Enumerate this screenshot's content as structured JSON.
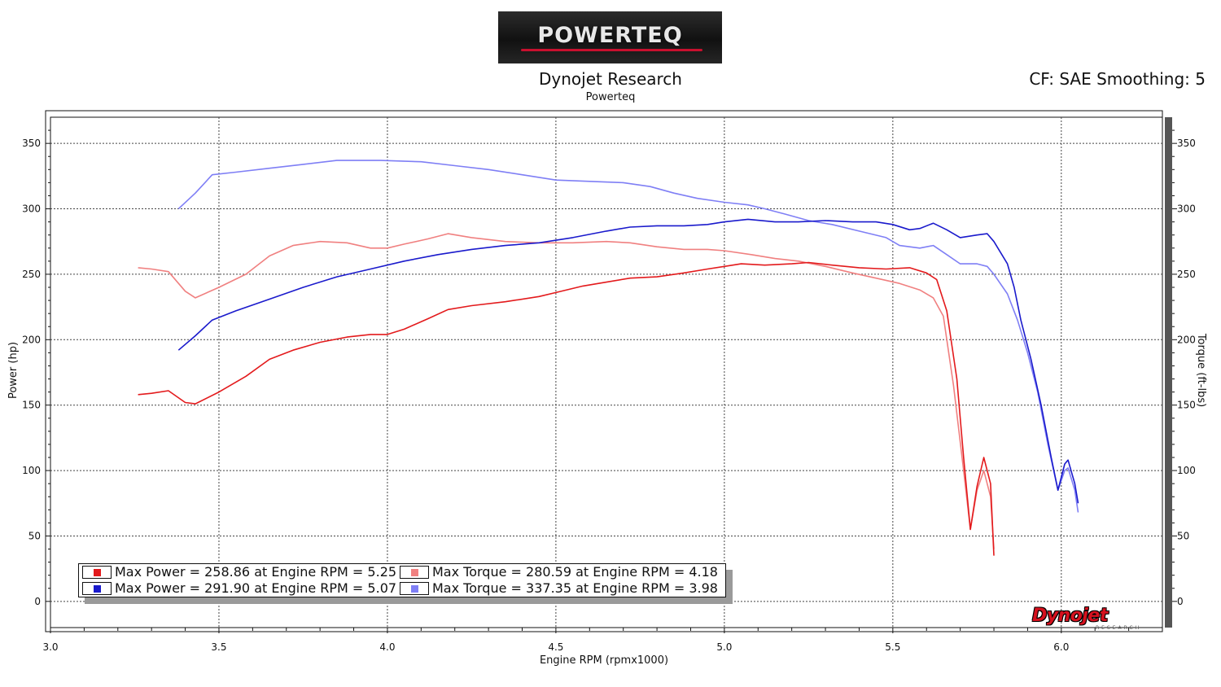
{
  "header": {
    "logo_text": "POWERTEQ",
    "title": "Dynojet Research",
    "subtitle": "Powerteq",
    "correction": "CF: SAE Smoothing: 5"
  },
  "footer_logo": {
    "text": "Dynojet",
    "subtext": "RESEARCH"
  },
  "chart_data": {
    "type": "line",
    "title": "Dynojet Research",
    "subtitle": "Powerteq",
    "xlabel": "Engine RPM (rpmx1000)",
    "ylabel": "Power (hp)",
    "y2label": "Torque (ft-lbs)",
    "xlim": [
      3.0,
      6.3
    ],
    "ylim": [
      -20,
      370
    ],
    "y2lim": [
      -20,
      370
    ],
    "x_ticks": [
      "3.0",
      "3.5",
      "4.0",
      "4.5",
      "5.0",
      "5.5",
      "6.0"
    ],
    "y_ticks": [
      "0",
      "50",
      "100",
      "150",
      "200",
      "250",
      "300",
      "350"
    ],
    "grid": true,
    "legend_position": "bottom-left",
    "series": [
      {
        "name": "Max Power = 258.86 at Engine RPM = 5.25",
        "axis": "left",
        "color": "#e31a1c",
        "points": [
          [
            3.26,
            158
          ],
          [
            3.3,
            159
          ],
          [
            3.35,
            161
          ],
          [
            3.4,
            152
          ],
          [
            3.43,
            151
          ],
          [
            3.5,
            160
          ],
          [
            3.58,
            172
          ],
          [
            3.65,
            185
          ],
          [
            3.72,
            192
          ],
          [
            3.8,
            198
          ],
          [
            3.88,
            202
          ],
          [
            3.95,
            204
          ],
          [
            4.0,
            204
          ],
          [
            4.05,
            208
          ],
          [
            4.12,
            216
          ],
          [
            4.18,
            223
          ],
          [
            4.25,
            226
          ],
          [
            4.35,
            229
          ],
          [
            4.45,
            233
          ],
          [
            4.5,
            236
          ],
          [
            4.58,
            241
          ],
          [
            4.65,
            244
          ],
          [
            4.72,
            247
          ],
          [
            4.8,
            248
          ],
          [
            4.88,
            251
          ],
          [
            4.95,
            254
          ],
          [
            5.0,
            256
          ],
          [
            5.05,
            258
          ],
          [
            5.12,
            257
          ],
          [
            5.2,
            258
          ],
          [
            5.25,
            259
          ],
          [
            5.32,
            257
          ],
          [
            5.4,
            255
          ],
          [
            5.48,
            254
          ],
          [
            5.55,
            255
          ],
          [
            5.6,
            251
          ],
          [
            5.63,
            246
          ],
          [
            5.66,
            222
          ],
          [
            5.69,
            170
          ],
          [
            5.71,
            110
          ],
          [
            5.73,
            55
          ],
          [
            5.75,
            88
          ],
          [
            5.77,
            110
          ],
          [
            5.79,
            90
          ],
          [
            5.8,
            35
          ]
        ]
      },
      {
        "name": "Max Power = 291.90 at Engine RPM = 5.07",
        "axis": "left",
        "color": "#1a1acc",
        "points": [
          [
            3.38,
            192
          ],
          [
            3.43,
            203
          ],
          [
            3.48,
            215
          ],
          [
            3.55,
            222
          ],
          [
            3.65,
            231
          ],
          [
            3.75,
            240
          ],
          [
            3.85,
            248
          ],
          [
            3.95,
            254
          ],
          [
            4.05,
            260
          ],
          [
            4.15,
            265
          ],
          [
            4.25,
            269
          ],
          [
            4.35,
            272
          ],
          [
            4.45,
            274
          ],
          [
            4.55,
            278
          ],
          [
            4.65,
            283
          ],
          [
            4.72,
            286
          ],
          [
            4.8,
            287
          ],
          [
            4.88,
            287
          ],
          [
            4.95,
            288
          ],
          [
            5.0,
            290
          ],
          [
            5.07,
            292
          ],
          [
            5.15,
            290
          ],
          [
            5.22,
            290
          ],
          [
            5.3,
            291
          ],
          [
            5.38,
            290
          ],
          [
            5.45,
            290
          ],
          [
            5.5,
            288
          ],
          [
            5.55,
            284
          ],
          [
            5.58,
            285
          ],
          [
            5.62,
            289
          ],
          [
            5.66,
            284
          ],
          [
            5.7,
            278
          ],
          [
            5.75,
            280
          ],
          [
            5.78,
            281
          ],
          [
            5.8,
            275
          ],
          [
            5.84,
            258
          ],
          [
            5.86,
            240
          ],
          [
            5.88,
            215
          ],
          [
            5.91,
            185
          ],
          [
            5.94,
            150
          ],
          [
            5.97,
            110
          ],
          [
            5.99,
            85
          ],
          [
            6.01,
            105
          ],
          [
            6.02,
            108
          ],
          [
            6.04,
            90
          ],
          [
            6.05,
            75
          ]
        ]
      },
      {
        "name": "Max Torque = 280.59 at Engine RPM = 4.18",
        "axis": "right",
        "color": "#f08080",
        "points": [
          [
            3.26,
            255
          ],
          [
            3.3,
            254
          ],
          [
            3.35,
            252
          ],
          [
            3.4,
            237
          ],
          [
            3.43,
            232
          ],
          [
            3.5,
            240
          ],
          [
            3.58,
            250
          ],
          [
            3.65,
            264
          ],
          [
            3.72,
            272
          ],
          [
            3.8,
            275
          ],
          [
            3.88,
            274
          ],
          [
            3.95,
            270
          ],
          [
            4.0,
            270
          ],
          [
            4.05,
            273
          ],
          [
            4.12,
            277
          ],
          [
            4.18,
            281
          ],
          [
            4.25,
            278
          ],
          [
            4.35,
            275
          ],
          [
            4.45,
            274
          ],
          [
            4.55,
            274
          ],
          [
            4.65,
            275
          ],
          [
            4.72,
            274
          ],
          [
            4.8,
            271
          ],
          [
            4.88,
            269
          ],
          [
            4.95,
            269
          ],
          [
            5.0,
            268
          ],
          [
            5.08,
            265
          ],
          [
            5.15,
            262
          ],
          [
            5.22,
            260
          ],
          [
            5.3,
            256
          ],
          [
            5.38,
            251
          ],
          [
            5.45,
            247
          ],
          [
            5.52,
            243
          ],
          [
            5.58,
            238
          ],
          [
            5.62,
            232
          ],
          [
            5.65,
            218
          ],
          [
            5.68,
            165
          ],
          [
            5.71,
            100
          ],
          [
            5.73,
            55
          ],
          [
            5.75,
            85
          ],
          [
            5.77,
            100
          ],
          [
            5.79,
            80
          ],
          [
            5.8,
            40
          ]
        ]
      },
      {
        "name": "Max Torque = 337.35 at Engine RPM = 3.98",
        "axis": "right",
        "color": "#7f7ff5",
        "points": [
          [
            3.38,
            300
          ],
          [
            3.43,
            312
          ],
          [
            3.48,
            326
          ],
          [
            3.55,
            328
          ],
          [
            3.65,
            331
          ],
          [
            3.75,
            334
          ],
          [
            3.85,
            337
          ],
          [
            3.98,
            337
          ],
          [
            4.1,
            336
          ],
          [
            4.2,
            333
          ],
          [
            4.3,
            330
          ],
          [
            4.4,
            326
          ],
          [
            4.5,
            322
          ],
          [
            4.6,
            321
          ],
          [
            4.7,
            320
          ],
          [
            4.78,
            317
          ],
          [
            4.85,
            312
          ],
          [
            4.92,
            308
          ],
          [
            5.0,
            305
          ],
          [
            5.07,
            303
          ],
          [
            5.12,
            300
          ],
          [
            5.18,
            296
          ],
          [
            5.25,
            291
          ],
          [
            5.32,
            288
          ],
          [
            5.4,
            283
          ],
          [
            5.48,
            278
          ],
          [
            5.52,
            272
          ],
          [
            5.58,
            270
          ],
          [
            5.62,
            272
          ],
          [
            5.66,
            265
          ],
          [
            5.7,
            258
          ],
          [
            5.75,
            258
          ],
          [
            5.78,
            256
          ],
          [
            5.8,
            250
          ],
          [
            5.84,
            235
          ],
          [
            5.87,
            215
          ],
          [
            5.9,
            190
          ],
          [
            5.93,
            160
          ],
          [
            5.96,
            120
          ],
          [
            5.99,
            85
          ],
          [
            6.01,
            100
          ],
          [
            6.02,
            102
          ],
          [
            6.04,
            85
          ],
          [
            6.05,
            68
          ]
        ]
      }
    ]
  }
}
